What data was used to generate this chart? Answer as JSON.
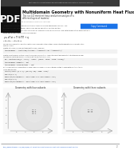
{
  "bg_color": "#ffffff",
  "header_bar_color": "#3a3a3a",
  "header_text": "Heat Conduction in Multidomain Geometry with Nonuniform Heat Flux - MATLAB & Simulink",
  "pdf_box_color": "#111111",
  "pdf_text": "PDF",
  "section_title": "Multidomain Geometry with Nonuniform Heat Flux",
  "subtitle1": "This is a 3-D transient heat conduction analysis of a",
  "subtitle2": "different layers of material",
  "disclaimer": "This article is subject to a MathWorks editorial fact-flow.",
  "body_text_color": "#333333",
  "small_text_color": "#555555",
  "code_bg": "#f2f2f2",
  "code_border": "#dddddd",
  "link_color": "#1155cc",
  "plot_title_left": "Geometry with four subsets",
  "plot_title_right": "Geometry with three subsets",
  "footer_url": "https://www.mathworks.com/help/pde/ug/heat-conduction-in-multidomain-geometry-with-nonuniform-heat-flux.html",
  "footer_page": "2",
  "button_bg": "#1a73e8",
  "button_text": "Copy Command",
  "sphere_color": "#d5d5d5",
  "sphere_inner": "#e8e8e8",
  "plot_bg": "#f8f8f8",
  "axis_color": "#aaaaaa",
  "label_color": "#777777"
}
